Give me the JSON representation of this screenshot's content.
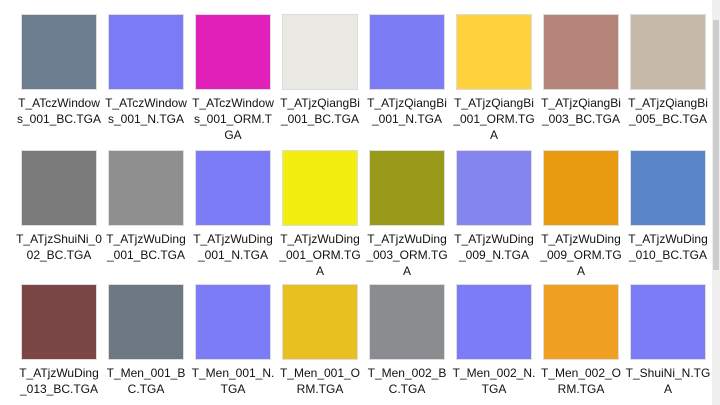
{
  "files": [
    {
      "name": "T_ATczWindows_001_BC.TGA",
      "color": "#6b7d8f"
    },
    {
      "name": "T_ATczWindows_001_N.TGA",
      "color": "#7b7cf5"
    },
    {
      "name": "T_ATczWindows_001_ORM.TGA",
      "color": "#e020b8"
    },
    {
      "name": "T_ATjzQiangBi_001_BC.TGA",
      "color": "#ebe9e4"
    },
    {
      "name": "T_ATjzQiangBi_001_N.TGA",
      "color": "#7c7cf4"
    },
    {
      "name": "T_ATjzQiangBi_001_ORM.TGA",
      "color": "#fdd23c"
    },
    {
      "name": "T_ATjzQiangBi_003_BC.TGA",
      "color": "#b5857a"
    },
    {
      "name": "T_ATjzQiangBi_005_BC.TGA",
      "color": "#c6b9a8"
    },
    {
      "name": "T_ATjzShuiNi_002_BC.TGA",
      "color": "#7b7b7b"
    },
    {
      "name": "T_ATjzWuDing_001_BC.TGA",
      "color": "#8f8f8f"
    },
    {
      "name": "T_ATjzWuDing_001_N.TGA",
      "color": "#7c7cf6"
    },
    {
      "name": "T_ATjzWuDing_001_ORM.TGA",
      "color": "#f3ee10"
    },
    {
      "name": "T_ATjzWuDing_003_ORM.TGA",
      "color": "#9a9a1a"
    },
    {
      "name": "T_ATjzWuDing_009_N.TGA",
      "color": "#8585f0"
    },
    {
      "name": "T_ATjzWuDing_009_ORM.TGA",
      "color": "#e89a10"
    },
    {
      "name": "T_ATjzWuDing_010_BC.TGA",
      "color": "#5a86c8"
    },
    {
      "name": "T_ATjzWuDing_013_BC.TGA",
      "color": "#7a4646"
    },
    {
      "name": "T_Men_001_BC.TGA",
      "color": "#6e7885"
    },
    {
      "name": "T_Men_001_N.TGA",
      "color": "#7c7cf6"
    },
    {
      "name": "T_Men_001_ORM.TGA",
      "color": "#e8c020"
    },
    {
      "name": "T_Men_002_BC.TGA",
      "color": "#8a8c90"
    },
    {
      "name": "T_Men_002_N.TGA",
      "color": "#7c7cf6"
    },
    {
      "name": "T_Men_002_ORM.TGA",
      "color": "#f0a020"
    },
    {
      "name": "T_ShuiNi_N.TGA",
      "color": "#7c7cf6"
    }
  ]
}
